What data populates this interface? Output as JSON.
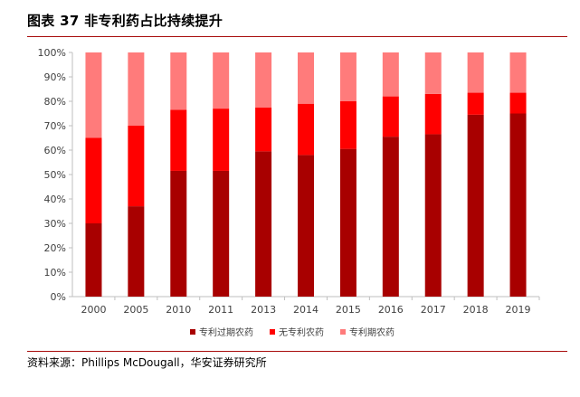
{
  "header": {
    "title": "图表 37 非专利药占比持续提升"
  },
  "footer": {
    "source": "资料来源：Phillips McDougall，华安证券研究所"
  },
  "chart_data": {
    "type": "bar",
    "stacked": true,
    "title": "",
    "xlabel": "",
    "ylabel": "",
    "categories": [
      "2000",
      "2005",
      "2010",
      "2011",
      "2013",
      "2014",
      "2015",
      "2016",
      "2017",
      "2018",
      "2019"
    ],
    "yticks": [
      "0%",
      "10%",
      "20%",
      "30%",
      "40%",
      "50%",
      "60%",
      "70%",
      "80%",
      "90%",
      "100%"
    ],
    "ylim": [
      0,
      100
    ],
    "grid": false,
    "legend_position": "bottom",
    "series": [
      {
        "name": "专利过期农药",
        "color": "#a80000",
        "values": [
          30,
          37,
          51.5,
          51.5,
          59.5,
          58,
          60.5,
          65.5,
          66.5,
          74.5,
          75
        ]
      },
      {
        "name": "无专利农药",
        "color": "#ff0000",
        "values": [
          35,
          33,
          25,
          25.5,
          18,
          21,
          19.5,
          16.5,
          16.5,
          9,
          8.5
        ]
      },
      {
        "name": "专利期农药",
        "color": "#ff7b7b",
        "values": [
          35,
          30,
          23.5,
          23,
          22.5,
          21,
          20,
          18,
          17,
          16.5,
          16.5
        ]
      }
    ]
  }
}
